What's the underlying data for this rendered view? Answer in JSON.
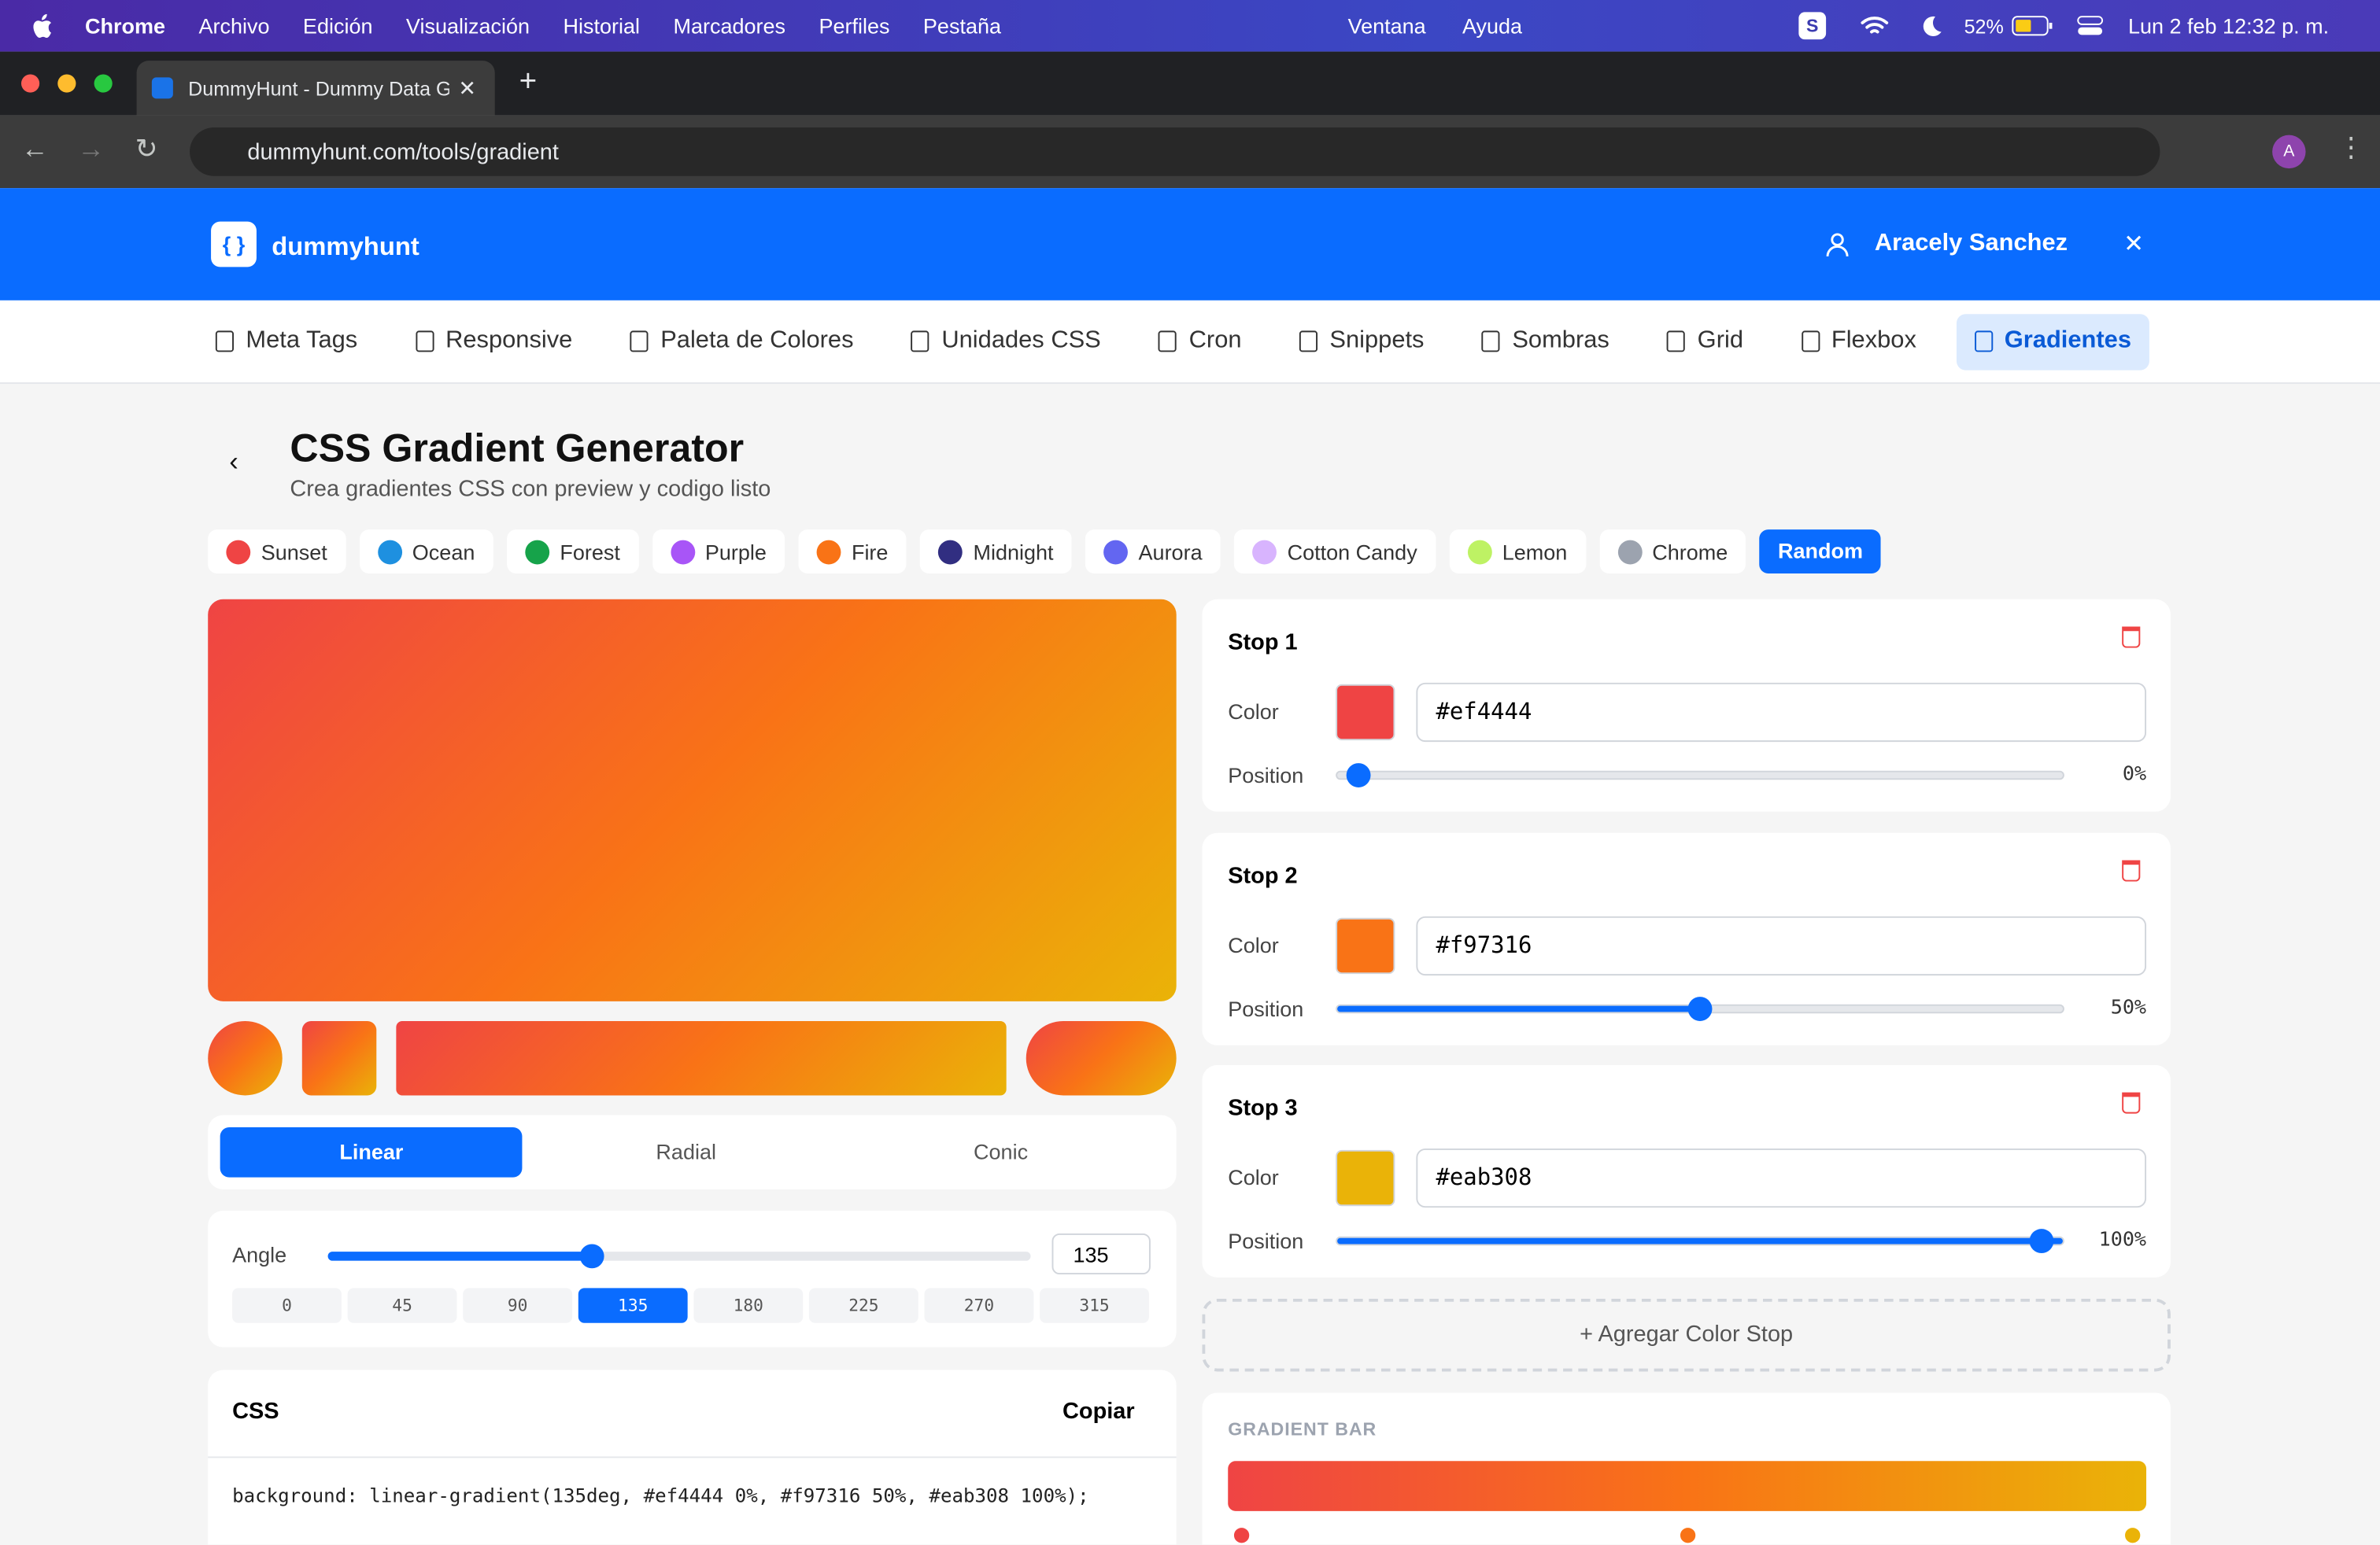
{
  "menubar": {
    "app": "Chrome",
    "left_items": [
      "Archivo",
      "Edición",
      "Visualización",
      "Historial",
      "Marcadores",
      "Perfiles",
      "Pestaña"
    ],
    "right_items": [
      "Ventana",
      "Ayuda"
    ],
    "battery": "52%",
    "clock": "Lun 2 feb 12:32 p. m."
  },
  "browser": {
    "tab_title": "DummyHunt - Dummy Data G",
    "url": "dummyhunt.com/tools/gradient",
    "avatar": "A"
  },
  "header": {
    "brand": "dummyhunt",
    "user": "Aracely Sanchez"
  },
  "nav": [
    "Meta Tags",
    "Responsive",
    "Paleta de Colores",
    "Unidades CSS",
    "Cron",
    "Snippets",
    "Sombras",
    "Grid",
    "Flexbox",
    "Gradientes"
  ],
  "page": {
    "title": "CSS Gradient Generator",
    "subtitle": "Crea gradientes CSS con preview y codigo listo"
  },
  "presets": [
    {
      "name": "Sunset",
      "color": "#ef4444"
    },
    {
      "name": "Ocean",
      "color": "#1e90e0"
    },
    {
      "name": "Forest",
      "color": "#16a34a"
    },
    {
      "name": "Purple",
      "color": "#a855f7"
    },
    {
      "name": "Fire",
      "color": "#f97316"
    },
    {
      "name": "Midnight",
      "color": "#312e81"
    },
    {
      "name": "Aurora",
      "color": "#6366f1"
    },
    {
      "name": "Cotton Candy",
      "color": "#d8b4fe"
    },
    {
      "name": "Lemon",
      "color": "#bef264"
    },
    {
      "name": "Chrome",
      "color": "#9ca3af"
    }
  ],
  "random": "Random",
  "modes": [
    "Linear",
    "Radial",
    "Conic"
  ],
  "angle": {
    "label": "Angle",
    "value": "135",
    "presets": [
      "0",
      "45",
      "90",
      "135",
      "180",
      "225",
      "270",
      "315"
    ]
  },
  "css": {
    "title": "CSS",
    "copy": "Copiar",
    "code": "background: linear-gradient(135deg, #ef4444 0%, #f97316 50%, #eab308 100%);"
  },
  "stops": [
    {
      "title": "Stop 1",
      "color_label": "Color",
      "hex": "#ef4444",
      "position_label": "Position",
      "position": "0%"
    },
    {
      "title": "Stop 2",
      "color_label": "Color",
      "hex": "#f97316",
      "position_label": "Position",
      "position": "50%"
    },
    {
      "title": "Stop 3",
      "color_label": "Color",
      "hex": "#eab308",
      "position_label": "Position",
      "position": "100%"
    }
  ],
  "add_stop": "+ Agregar Color Stop",
  "gradient_bar": "GRADIENT BAR"
}
